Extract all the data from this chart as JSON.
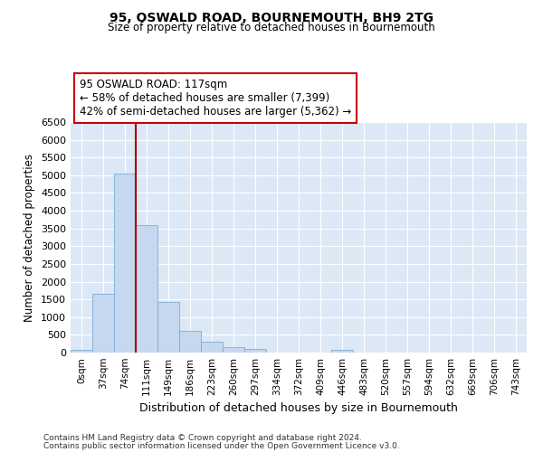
{
  "title": "95, OSWALD ROAD, BOURNEMOUTH, BH9 2TG",
  "subtitle": "Size of property relative to detached houses in Bournemouth",
  "xlabel": "Distribution of detached houses by size in Bournemouth",
  "ylabel": "Number of detached properties",
  "bar_color": "#c5d8f0",
  "bar_edge_color": "#7aadd4",
  "background_color": "#dce8f5",
  "grid_color": "#ffffff",
  "vline_color": "#aa0000",
  "annotation_text": "95 OSWALD ROAD: 117sqm\n← 58% of detached houses are smaller (7,399)\n42% of semi-detached houses are larger (5,362) →",
  "annotation_box_color": "#ffffff",
  "annotation_box_edge": "#cc0000",
  "categories": [
    "0sqm",
    "37sqm",
    "74sqm",
    "111sqm",
    "149sqm",
    "186sqm",
    "223sqm",
    "260sqm",
    "297sqm",
    "334sqm",
    "372sqm",
    "409sqm",
    "446sqm",
    "483sqm",
    "520sqm",
    "557sqm",
    "594sqm",
    "632sqm",
    "669sqm",
    "706sqm",
    "743sqm"
  ],
  "values": [
    70,
    1650,
    5050,
    3600,
    1430,
    620,
    300,
    150,
    100,
    0,
    0,
    0,
    70,
    0,
    0,
    0,
    0,
    0,
    0,
    0,
    0
  ],
  "vline_pos": 2.5,
  "ylim": [
    0,
    6500
  ],
  "yticks": [
    0,
    500,
    1000,
    1500,
    2000,
    2500,
    3000,
    3500,
    4000,
    4500,
    5000,
    5500,
    6000,
    6500
  ],
  "footer1": "Contains HM Land Registry data © Crown copyright and database right 2024.",
  "footer2": "Contains public sector information licensed under the Open Government Licence v3.0."
}
